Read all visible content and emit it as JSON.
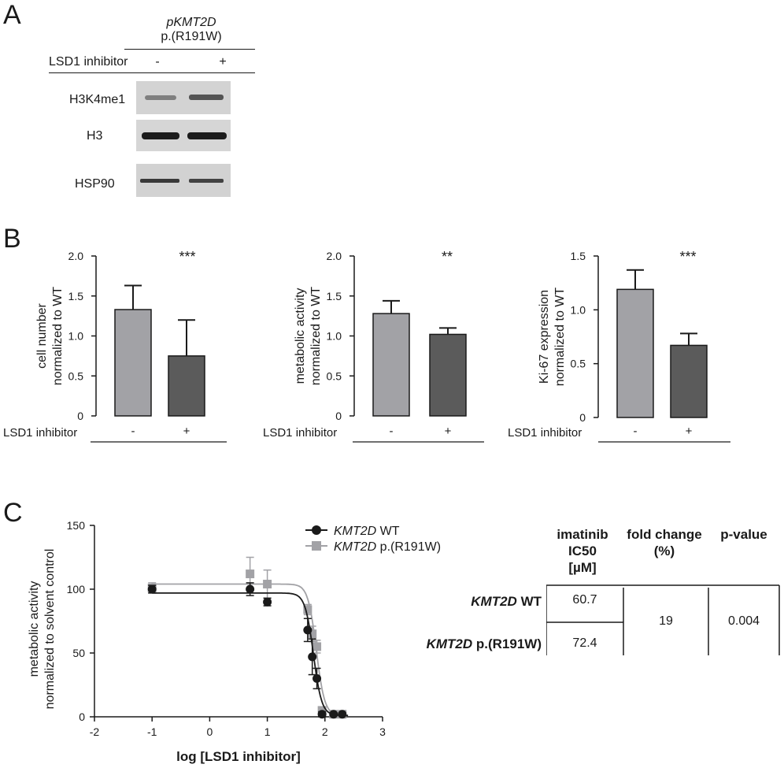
{
  "panel_a": {
    "letter": "A",
    "construct_name": "pKMT2D",
    "construct_variant": "p.(R191W)",
    "treatment_label": "LSD1 inhibitor",
    "lanes": [
      "-",
      "+"
    ],
    "blots": [
      {
        "label": "H3K4me1",
        "band_intensity": [
          0.55,
          0.75
        ]
      },
      {
        "label": "H3",
        "band_intensity": [
          0.95,
          0.95
        ]
      },
      {
        "label": "HSP90",
        "band_intensity": [
          0.85,
          0.8
        ]
      }
    ]
  },
  "panel_b": {
    "letter": "B",
    "treatment_label": "LSD1 inhibitor",
    "colors": {
      "minus": "#a2a2a6",
      "plus": "#5b5b5b"
    }
  },
  "panel_c": {
    "letter": "C",
    "table": {
      "headers": [
        "imatinib IC50 [µM]",
        "fold change (%)",
        "p-value"
      ],
      "header_lines": [
        [
          "imatinib",
          "IC50",
          "[µM]"
        ],
        [
          "fold change",
          "(%)"
        ],
        [
          "p-value"
        ]
      ],
      "rows": [
        {
          "label_italic": "KMT2D",
          "label_rest": " WT",
          "ic50": "60.7"
        },
        {
          "label_italic": "KMT2D",
          "label_rest": " p.(R191W)",
          "ic50": "72.4"
        }
      ],
      "fold_change": "19",
      "p_value": "0.004"
    }
  },
  "chart_data": [
    {
      "type": "bar",
      "categories": [
        "-",
        "+"
      ],
      "values": [
        1.33,
        0.75
      ],
      "errors": [
        0.3,
        0.45
      ],
      "significance": "***",
      "ylabel": [
        "cell number",
        "normalized to WT"
      ],
      "ylim": [
        0,
        2.0
      ],
      "yticks": [
        "0",
        "0.5",
        "1.0",
        "1.5",
        "2.0"
      ],
      "ytick_values": [
        0,
        0.5,
        1.0,
        1.5,
        2.0
      ]
    },
    {
      "type": "bar",
      "categories": [
        "-",
        "+"
      ],
      "values": [
        1.28,
        1.02
      ],
      "errors": [
        0.16,
        0.08
      ],
      "significance": "**",
      "ylabel": [
        "metabolic activity",
        "normalized to WT"
      ],
      "ylim": [
        0,
        2.0
      ],
      "yticks": [
        "0",
        "0.5",
        "1.0",
        "1.5",
        "2.0"
      ],
      "ytick_values": [
        0,
        0.5,
        1.0,
        1.5,
        2.0
      ]
    },
    {
      "type": "bar",
      "categories": [
        "-",
        "+"
      ],
      "values": [
        1.19,
        0.67
      ],
      "errors": [
        0.18,
        0.11
      ],
      "significance": "***",
      "ylabel": [
        "Ki-67 expression",
        "normalized to WT"
      ],
      "ylim": [
        0,
        1.5
      ],
      "yticks": [
        "0",
        "0.5",
        "1.0",
        "1.5"
      ],
      "ytick_values": [
        0,
        0.5,
        1.0,
        1.5
      ]
    },
    {
      "type": "scatter",
      "xlabel": "log [LSD1 inhibitor]",
      "ylabel": [
        "metabolic activity",
        "normalized to solvent control"
      ],
      "xlim": [
        -2,
        3
      ],
      "ylim": [
        0,
        150
      ],
      "xticks": [
        -2,
        -1,
        0,
        1,
        2,
        3
      ],
      "yticks": [
        0,
        50,
        100,
        150
      ],
      "series": [
        {
          "name_italic": "KMT2D",
          "name_rest": " WT",
          "color": "#1a1a1a",
          "marker": "circle",
          "x": [
            -1,
            0.7,
            1,
            1.7,
            1.78,
            1.86,
            1.95,
            2.15,
            2.3
          ],
          "y": [
            100,
            100,
            90,
            68,
            47,
            30,
            2,
            2,
            2
          ],
          "err": [
            3,
            5,
            3,
            9,
            14,
            8,
            2,
            1,
            1
          ],
          "fit": {
            "top": 97,
            "bottom": 1,
            "logec50": 1.8,
            "hill": -6
          }
        },
        {
          "name_italic": "KMT2D",
          "name_rest": " p.(R191W)",
          "color": "#a2a2a6",
          "marker": "square",
          "x": [
            -1,
            0.7,
            1,
            1.7,
            1.78,
            1.86,
            1.95,
            2.15,
            2.3
          ],
          "y": [
            101,
            112,
            104,
            84,
            65,
            55,
            5,
            2,
            2
          ],
          "err": [
            4,
            13,
            11,
            4,
            6,
            5,
            2,
            1,
            1
          ],
          "fit": {
            "top": 104,
            "bottom": 1,
            "logec50": 1.85,
            "hill": -6
          }
        }
      ]
    }
  ]
}
